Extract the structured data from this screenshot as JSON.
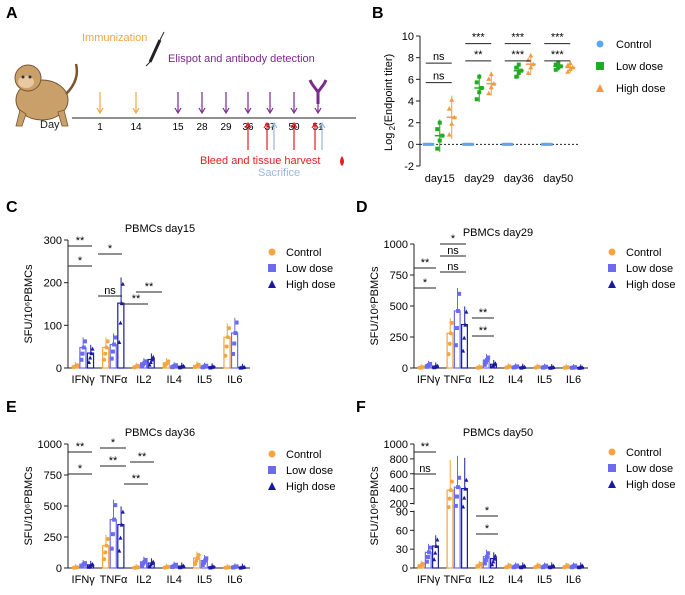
{
  "colors": {
    "control": "#f5a442",
    "low": "#6b6bf0",
    "high": "#1a1aa0",
    "immun": "#f5a442",
    "elispot": "#7a2a8a",
    "bleed": "#e02020",
    "sacrifice": "#9ab8e0",
    "b_control": "#5ca8f0",
    "b_low": "#22aa22",
    "b_high": "#f59a3c"
  },
  "panelA": {
    "letter": "A",
    "immunization_label": "Immunization",
    "elispot_label": "Elispot and antibody detection",
    "bleed_label": "Bleed and tissue harvest",
    "sacrifice_label": "Sacrifice",
    "day_label": "Day",
    "days": [
      "1",
      "14",
      "15",
      "28",
      "29",
      "36",
      "37",
      "50",
      "51"
    ]
  },
  "chart_data": [
    {
      "panel": "B",
      "type": "scatter",
      "ylabel_main": "Log",
      "ylabel_sub": "2",
      "ylabel_rest": "(Endpoint titer)",
      "ylim": [
        -2,
        10
      ],
      "yticks": [
        "-2",
        "0",
        "2",
        "4",
        "6",
        "8",
        "10"
      ],
      "categories": [
        "day15",
        "day29",
        "day36",
        "day50"
      ],
      "legend": [
        "Control",
        "Low dose",
        "High dose"
      ],
      "series": [
        {
          "name": "Control",
          "means": [
            0,
            0,
            0,
            0
          ],
          "sd": [
            0,
            0,
            0,
            0
          ]
        },
        {
          "name": "Low dose",
          "means": [
            0.8,
            5.2,
            6.8,
            7.2
          ],
          "sd": [
            1.5,
            1.3,
            0.7,
            0.4
          ]
        },
        {
          "name": "High dose",
          "means": [
            2.5,
            5.6,
            7.4,
            7.1
          ],
          "sd": [
            2.0,
            1.1,
            1.0,
            0.5
          ]
        }
      ],
      "annotations": [
        {
          "text": "ns",
          "cat": 0,
          "level": 7.5
        },
        {
          "text": "ns",
          "cat": 0,
          "level": 5.7
        },
        {
          "text": "***",
          "cat": 1,
          "level": 9.3
        },
        {
          "text": "**",
          "cat": 1,
          "level": 7.7
        },
        {
          "text": "***",
          "cat": 2,
          "level": 9.3
        },
        {
          "text": "***",
          "cat": 2,
          "level": 7.7
        },
        {
          "text": "***",
          "cat": 3,
          "level": 9.3
        },
        {
          "text": "***",
          "cat": 3,
          "level": 7.7
        }
      ]
    },
    {
      "panel": "C",
      "type": "bar",
      "title": "PBMCs day15",
      "ylabel": "SFU/10⁶PBMCs",
      "ylim": [
        0,
        300
      ],
      "yticks": [
        "0",
        "100",
        "200",
        "300"
      ],
      "categories": [
        "IFNγ",
        "TNFα",
        "IL2",
        "IL4",
        "IL5",
        "IL6"
      ],
      "legend": [
        "Control",
        "Low dose",
        "High dose"
      ],
      "series": [
        {
          "name": "Control",
          "values": [
            5,
            48,
            4,
            12,
            6,
            72
          ]
        },
        {
          "name": "Low dose",
          "values": [
            48,
            55,
            12,
            5,
            4,
            82
          ]
        },
        {
          "name": "High dose",
          "values": [
            35,
            152,
            20,
            4,
            3,
            2
          ]
        }
      ],
      "annotations": [
        "**",
        "*",
        "*",
        "ns",
        "**",
        "**"
      ]
    },
    {
      "panel": "D",
      "type": "bar",
      "title": "PBMCs  day29",
      "ylabel": "SFU/10⁶PBMCs",
      "ylim": [
        0,
        1000
      ],
      "yticks": [
        "0",
        "250",
        "500",
        "750",
        "1000"
      ],
      "categories": [
        "IFNγ",
        "TNFα",
        "IL2",
        "IL4",
        "IL5",
        "IL6"
      ],
      "legend": [
        "Control",
        "Low dose",
        "High dose"
      ],
      "series": [
        {
          "name": "Control",
          "values": [
            5,
            280,
            5,
            10,
            8,
            5
          ]
        },
        {
          "name": "Low dose",
          "values": [
            25,
            460,
            65,
            10,
            8,
            5
          ]
        },
        {
          "name": "High dose",
          "values": [
            15,
            350,
            30,
            8,
            6,
            4
          ]
        }
      ],
      "annotations": [
        "**",
        "*",
        "ns",
        "*",
        "ns",
        "**",
        "**"
      ]
    },
    {
      "panel": "E",
      "type": "bar",
      "title": "PBMCs  day36",
      "ylabel": "SFU/10⁶PBMCs",
      "ylim": [
        0,
        1000
      ],
      "yticks": [
        "0",
        "250",
        "500",
        "750",
        "1000"
      ],
      "categories": [
        "IFNγ",
        "TNFα",
        "IL2",
        "IL4",
        "IL5",
        "IL6"
      ],
      "legend": [
        "Control",
        "Low dose",
        "High dose"
      ],
      "series": [
        {
          "name": "Control",
          "values": [
            5,
            180,
            5,
            8,
            80,
            5
          ]
        },
        {
          "name": "Low dose",
          "values": [
            30,
            390,
            50,
            20,
            60,
            10
          ]
        },
        {
          "name": "High dose",
          "values": [
            25,
            350,
            40,
            15,
            10,
            8
          ]
        }
      ],
      "annotations": [
        "**",
        "*",
        "*",
        "**",
        "**",
        "**"
      ]
    },
    {
      "panel": "F",
      "type": "bar",
      "title": "PBMCs  day50",
      "ylabel": "SFU/10⁶PBMCs",
      "yticks_upper": [
        "200",
        "400",
        "600",
        "800",
        "1000"
      ],
      "yticks_lower": [
        "0",
        "30",
        "60",
        "90"
      ],
      "categories": [
        "IFNγ",
        "TNFα",
        "IL2",
        "IL4",
        "IL5",
        "IL6"
      ],
      "legend": [
        "Control",
        "Low dose",
        "High dose"
      ],
      "series": [
        {
          "name": "Control",
          "values": [
            5,
            380,
            5,
            3,
            3,
            3
          ]
        },
        {
          "name": "Low dose",
          "values": [
            25,
            420,
            18,
            3,
            3,
            3
          ]
        },
        {
          "name": "High dose",
          "values": [
            35,
            400,
            15,
            3,
            3,
            3
          ]
        }
      ],
      "annotations": [
        "**",
        "ns",
        "*",
        "*"
      ]
    }
  ]
}
